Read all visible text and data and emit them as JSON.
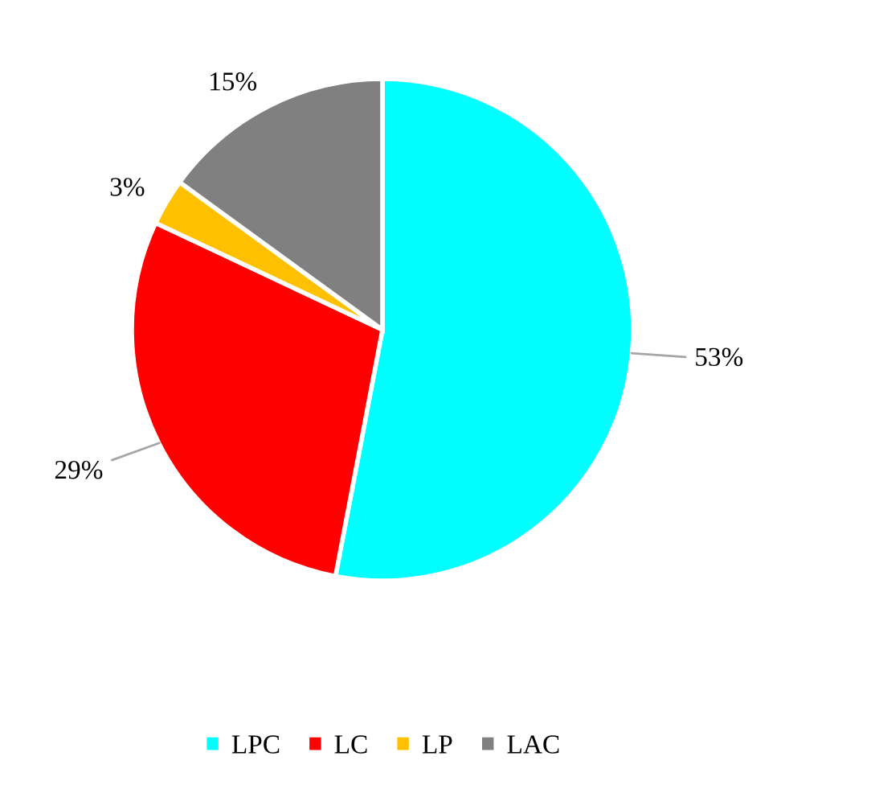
{
  "chart_data": {
    "type": "pie",
    "categories": [
      "LPC",
      "LC",
      "LP",
      "LAC"
    ],
    "values": [
      53,
      29,
      3,
      15
    ],
    "colors": [
      "#00ffff",
      "#ff0000",
      "#ffc000",
      "#808080"
    ],
    "value_labels": [
      "53%",
      "29%",
      "3%",
      "15%"
    ],
    "legend": "bottom"
  }
}
